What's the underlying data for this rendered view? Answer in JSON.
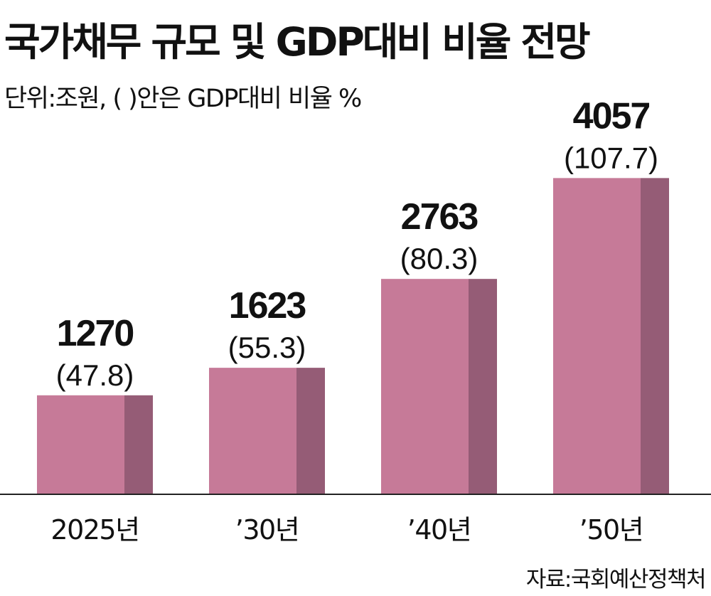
{
  "title": "국가채무 규모 및 GDP대비 비율 전망",
  "subtitle": "단위:조원, (   )안은 GDP대비 비율 %",
  "source": "자료:국회예산정책처",
  "colors": {
    "bar_front": "#c67a98",
    "bar_side": "#955c76",
    "axis": "#222222",
    "text": "#111111"
  },
  "chart_data": {
    "type": "bar",
    "title": "국가채무 규모 및 GDP대비 비율 전망",
    "unit": "조원",
    "categories": [
      "2025년",
      "’30년",
      "’40년",
      "’50년"
    ],
    "values": [
      1270,
      1623,
      2763,
      4057
    ],
    "ratio_labels": [
      "(47.8)",
      "(55.3)",
      "(80.3)",
      "(107.7)"
    ],
    "ylim": [
      0,
      4500
    ],
    "grid": false,
    "legend": "none"
  }
}
